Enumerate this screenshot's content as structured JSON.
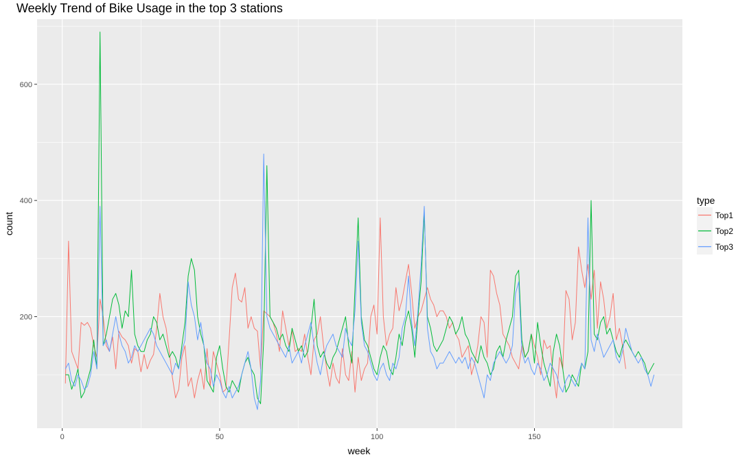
{
  "chart_data": {
    "type": "line",
    "title": "Weekly Trend of Bike Usage in the top 3 stations",
    "xlabel": "week",
    "ylabel": "count",
    "xlim": [
      -8,
      197
    ],
    "ylim": [
      8,
      712
    ],
    "x_ticks": [
      0,
      50,
      100,
      150
    ],
    "y_ticks": [
      200,
      400,
      600
    ],
    "legend": {
      "title": "type",
      "position": "right"
    },
    "grid": true,
    "series": [
      {
        "name": "Top1",
        "color": "#F8766D",
        "x": [
          1,
          2,
          3,
          4,
          5,
          6,
          7,
          8,
          9,
          10,
          11,
          12,
          13,
          14,
          15,
          16,
          17,
          18,
          19,
          20,
          21,
          22,
          23,
          24,
          25,
          26,
          27,
          28,
          29,
          30,
          31,
          32,
          33,
          34,
          35,
          36,
          37,
          38,
          39,
          40,
          41,
          42,
          43,
          44,
          45,
          46,
          47,
          48,
          49,
          50,
          51,
          52,
          53,
          54,
          55,
          56,
          57,
          58,
          59,
          60,
          61,
          62,
          63,
          64,
          65,
          66,
          67,
          68,
          69,
          70,
          71,
          72,
          73,
          74,
          75,
          76,
          77,
          78,
          79,
          80,
          81,
          82,
          83,
          84,
          85,
          86,
          87,
          88,
          89,
          90,
          91,
          92,
          93,
          94,
          95,
          96,
          97,
          98,
          99,
          100,
          101,
          102,
          103,
          104,
          105,
          106,
          107,
          108,
          109,
          110,
          111,
          112,
          113,
          114,
          115,
          116,
          117,
          118,
          119,
          120,
          121,
          122,
          123,
          124,
          125,
          126,
          127,
          128,
          129,
          130,
          131,
          132,
          133,
          134,
          135,
          136,
          137,
          138,
          139,
          140,
          141,
          142,
          143,
          144,
          145,
          146,
          147,
          148,
          149,
          150,
          151,
          152,
          153,
          154,
          155,
          156,
          157,
          158,
          159,
          160,
          161,
          162,
          163,
          164,
          165,
          166,
          167,
          168,
          169,
          170,
          171,
          172,
          173,
          174,
          175,
          176,
          177,
          178,
          179
        ],
        "values": [
          85,
          330,
          140,
          125,
          110,
          190,
          185,
          190,
          180,
          150,
          130,
          230,
          200,
          150,
          140,
          165,
          110,
          175,
          165,
          160,
          150,
          120,
          145,
          140,
          105,
          135,
          110,
          125,
          135,
          180,
          240,
          200,
          180,
          140,
          95,
          60,
          75,
          130,
          150,
          80,
          95,
          60,
          90,
          110,
          75,
          145,
          80,
          140,
          120,
          100,
          70,
          75,
          160,
          250,
          275,
          230,
          225,
          250,
          180,
          200,
          180,
          175,
          110,
          210,
          205,
          200,
          190,
          170,
          140,
          210,
          180,
          150,
          175,
          140,
          145,
          140,
          170,
          130,
          100,
          160,
          170,
          200,
          150,
          110,
          80,
          120,
          95,
          85,
          145,
          100,
          90,
          140,
          70,
          130,
          90,
          110,
          120,
          200,
          220,
          170,
          370,
          200,
          150,
          170,
          180,
          250,
          210,
          230,
          260,
          290,
          240,
          180,
          200,
          210,
          230,
          250,
          230,
          220,
          200,
          210,
          210,
          200,
          180,
          190,
          170,
          160,
          130,
          140,
          150,
          100,
          120,
          150,
          200,
          190,
          130,
          280,
          270,
          240,
          220,
          170,
          160,
          150,
          130,
          120,
          110,
          150,
          130,
          140,
          170,
          150,
          130,
          100,
          160,
          145,
          150,
          100,
          60,
          130,
          110,
          245,
          230,
          160,
          190,
          320,
          280,
          250,
          290,
          230,
          280,
          180,
          260,
          230,
          180,
          200,
          240,
          160,
          180,
          150,
          110
        ],
        "_note_": "first value corresponds to week 1; Top1 ends near week 179"
      },
      {
        "name": "Top2",
        "color": "#00BA38",
        "x": [
          1,
          2,
          3,
          4,
          5,
          6,
          7,
          8,
          9,
          10,
          11,
          12,
          13,
          14,
          15,
          16,
          17,
          18,
          19,
          20,
          21,
          22,
          23,
          24,
          25,
          26,
          27,
          28,
          29,
          30,
          31,
          32,
          33,
          34,
          35,
          36,
          37,
          38,
          39,
          40,
          41,
          42,
          43,
          44,
          45,
          46,
          47,
          48,
          49,
          50,
          51,
          52,
          53,
          54,
          55,
          56,
          57,
          58,
          59,
          60,
          61,
          62,
          63,
          64,
          65,
          66,
          67,
          68,
          69,
          70,
          71,
          72,
          73,
          74,
          75,
          76,
          77,
          78,
          79,
          80,
          81,
          82,
          83,
          84,
          85,
          86,
          87,
          88,
          89,
          90,
          91,
          92,
          93,
          94,
          95,
          96,
          97,
          98,
          99,
          100,
          101,
          102,
          103,
          104,
          105,
          106,
          107,
          108,
          109,
          110,
          111,
          112,
          113,
          114,
          115,
          116,
          117,
          118,
          119,
          120,
          121,
          122,
          123,
          124,
          125,
          126,
          127,
          128,
          129,
          130,
          131,
          132,
          133,
          134,
          135,
          136,
          137,
          138,
          139,
          140,
          141,
          142,
          143,
          144,
          145,
          146,
          147,
          148,
          149,
          150,
          151,
          152,
          153,
          154,
          155,
          156,
          157,
          158,
          159,
          160,
          161,
          162,
          163,
          164,
          165,
          166,
          167,
          168,
          169,
          170,
          171,
          172,
          173,
          174,
          175,
          176,
          177,
          178,
          179,
          180,
          181,
          182,
          183,
          184,
          185,
          186,
          187,
          188
        ],
        "values": [
          100,
          100,
          75,
          90,
          110,
          60,
          70,
          90,
          110,
          160,
          110,
          690,
          150,
          170,
          200,
          230,
          240,
          220,
          180,
          210,
          200,
          280,
          170,
          150,
          140,
          140,
          160,
          170,
          200,
          190,
          160,
          170,
          150,
          130,
          140,
          130,
          110,
          150,
          190,
          270,
          300,
          280,
          200,
          170,
          150,
          90,
          80,
          70,
          130,
          150,
          110,
          80,
          70,
          90,
          80,
          70,
          100,
          120,
          130,
          110,
          100,
          60,
          50,
          160,
          460,
          200,
          190,
          180,
          160,
          170,
          150,
          140,
          180,
          160,
          140,
          150,
          130,
          140,
          180,
          230,
          150,
          130,
          140,
          120,
          110,
          130,
          140,
          160,
          180,
          200,
          150,
          120,
          250,
          370,
          200,
          160,
          150,
          130,
          110,
          100,
          130,
          150,
          140,
          110,
          100,
          130,
          170,
          150,
          190,
          210,
          180,
          130,
          200,
          260,
          380,
          200,
          180,
          150,
          140,
          150,
          160,
          180,
          200,
          190,
          170,
          180,
          200,
          170,
          160,
          140,
          130,
          120,
          150,
          130,
          120,
          100,
          110,
          140,
          150,
          130,
          160,
          180,
          200,
          270,
          280,
          160,
          130,
          140,
          170,
          120,
          190,
          150,
          120,
          100,
          80,
          140,
          170,
          150,
          110,
          70,
          80,
          100,
          90,
          80,
          120,
          110,
          140,
          400,
          170,
          160,
          190,
          200,
          170,
          180,
          160,
          140,
          130,
          150,
          160,
          150,
          140,
          130,
          140,
          130,
          120,
          100,
          110,
          120
        ]
      },
      {
        "name": "Top3",
        "color": "#619CFF",
        "x": [
          1,
          2,
          3,
          4,
          5,
          6,
          7,
          8,
          9,
          10,
          11,
          12,
          13,
          14,
          15,
          16,
          17,
          18,
          19,
          20,
          21,
          22,
          23,
          24,
          25,
          26,
          27,
          28,
          29,
          30,
          31,
          32,
          33,
          34,
          35,
          36,
          37,
          38,
          39,
          40,
          41,
          42,
          43,
          44,
          45,
          46,
          47,
          48,
          49,
          50,
          51,
          52,
          53,
          54,
          55,
          56,
          57,
          58,
          59,
          60,
          61,
          62,
          63,
          64,
          65,
          66,
          67,
          68,
          69,
          70,
          71,
          72,
          73,
          74,
          75,
          76,
          77,
          78,
          79,
          80,
          81,
          82,
          83,
          84,
          85,
          86,
          87,
          88,
          89,
          90,
          91,
          92,
          93,
          94,
          95,
          96,
          97,
          98,
          99,
          100,
          101,
          102,
          103,
          104,
          105,
          106,
          107,
          108,
          109,
          110,
          111,
          112,
          113,
          114,
          115,
          116,
          117,
          118,
          119,
          120,
          121,
          122,
          123,
          124,
          125,
          126,
          127,
          128,
          129,
          130,
          131,
          132,
          133,
          134,
          135,
          136,
          137,
          138,
          139,
          140,
          141,
          142,
          143,
          144,
          145,
          146,
          147,
          148,
          149,
          150,
          151,
          152,
          153,
          154,
          155,
          156,
          157,
          158,
          159,
          160,
          161,
          162,
          163,
          164,
          165,
          166,
          167,
          168,
          169,
          170,
          171,
          172,
          173,
          174,
          175,
          176,
          177,
          178,
          179,
          180,
          181,
          182,
          183,
          184,
          185,
          186,
          187,
          188
        ],
        "values": [
          110,
          120,
          90,
          80,
          100,
          90,
          75,
          80,
          100,
          140,
          110,
          390,
          150,
          160,
          140,
          170,
          200,
          170,
          150,
          140,
          120,
          130,
          150,
          140,
          150,
          160,
          170,
          180,
          170,
          150,
          140,
          130,
          120,
          110,
          100,
          120,
          110,
          140,
          160,
          260,
          220,
          200,
          160,
          190,
          150,
          120,
          110,
          80,
          100,
          90,
          70,
          60,
          80,
          60,
          70,
          80,
          100,
          120,
          140,
          110,
          60,
          40,
          90,
          480,
          200,
          180,
          170,
          160,
          150,
          140,
          130,
          150,
          120,
          130,
          140,
          120,
          150,
          170,
          190,
          150,
          120,
          100,
          130,
          150,
          160,
          170,
          150,
          140,
          130,
          180,
          160,
          150,
          210,
          330,
          190,
          150,
          140,
          120,
          100,
          90,
          110,
          120,
          100,
          90,
          120,
          110,
          130,
          180,
          200,
          270,
          190,
          150,
          210,
          290,
          390,
          180,
          140,
          130,
          110,
          120,
          120,
          130,
          140,
          130,
          120,
          130,
          120,
          130,
          110,
          130,
          120,
          100,
          80,
          60,
          100,
          90,
          120,
          130,
          140,
          130,
          120,
          130,
          150,
          240,
          260,
          140,
          120,
          130,
          110,
          100,
          120,
          110,
          90,
          100,
          120,
          110,
          100,
          80,
          70,
          90,
          100,
          90,
          80,
          100,
          120,
          110,
          370,
          160,
          140,
          170,
          150,
          130,
          140,
          150,
          160,
          130,
          120,
          140,
          180,
          160,
          140,
          130,
          120,
          130,
          110,
          100,
          80,
          100
        ]
      }
    ]
  }
}
